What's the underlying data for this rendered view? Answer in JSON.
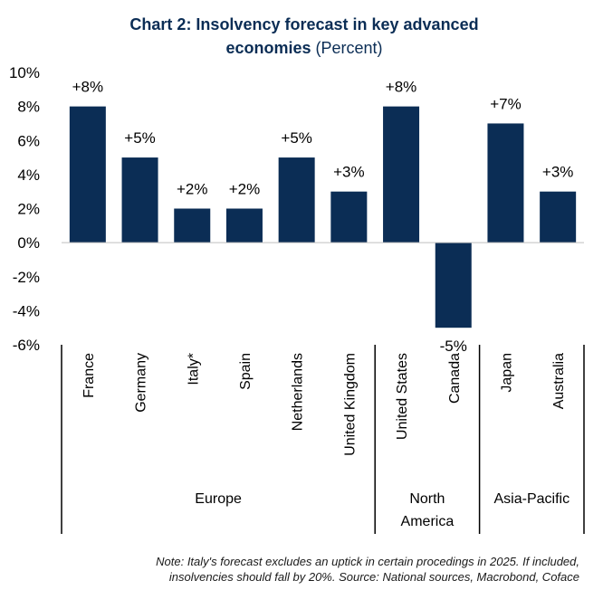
{
  "title_bold_line1": "Chart 2: Insolvency forecast in key advanced",
  "title_bold_line2": "economies",
  "title_sub": "(Percent)",
  "note_line1": "Note: Italy's forecast excludes an uptick in certain procedings in 2025. If included,",
  "note_line2": "insolvencies should fall by 20%. Source: National sources, Macrobond, Coface",
  "colors": {
    "bar": "#0b2d55",
    "title": "#0b2d55",
    "text": "#000000"
  },
  "chart_data": {
    "type": "bar",
    "categories": [
      "France",
      "Germany",
      "Italy*",
      "Spain",
      "Netherlands",
      "United Kingdom",
      "United States",
      "Canada",
      "Japan",
      "Australia"
    ],
    "values": [
      8,
      5,
      2,
      2,
      5,
      3,
      8,
      -5,
      7,
      3
    ],
    "data_labels": [
      "+8%",
      "+5%",
      "+2%",
      "+2%",
      "+5%",
      "+3%",
      "+8%",
      "-5%",
      "+7%",
      "+3%"
    ],
    "groups": [
      {
        "label": "Europe",
        "categories": [
          "France",
          "Germany",
          "Italy*",
          "Spain",
          "Netherlands",
          "United Kingdom"
        ]
      },
      {
        "label": "North America",
        "categories": [
          "United States",
          "Canada"
        ]
      },
      {
        "label": "Asia-Pacific",
        "categories": [
          "Japan",
          "Australia"
        ]
      }
    ],
    "ylim": [
      -6,
      10
    ],
    "yticks": [
      10,
      8,
      6,
      4,
      2,
      0,
      -2,
      -4,
      -6
    ],
    "ytick_labels": [
      "10%",
      "8%",
      "6%",
      "4%",
      "2%",
      "0%",
      "-2%",
      "-4%",
      "-6%"
    ],
    "grid": false,
    "legend": "none"
  }
}
